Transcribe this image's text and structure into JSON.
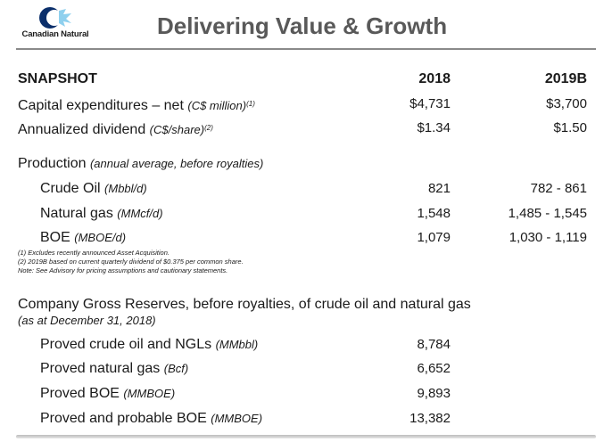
{
  "brand": {
    "logo_text": "Canadian Natural",
    "mark_color_dark": "#0b2f6b",
    "mark_color_light": "#8fd0ee"
  },
  "header": {
    "title": "Delivering Value & Growth"
  },
  "snapshot": {
    "heading": "SNAPSHOT",
    "col_2018": "2018",
    "col_2019": "2019B",
    "capex": {
      "label": "Capital expenditures – net",
      "unit": "(C$ million)",
      "note": "(1)",
      "v2018": "$4,731",
      "v2019": "$3,700"
    },
    "dividend": {
      "label": "Annualized dividend",
      "unit": "(C$/share)",
      "note": "(2)",
      "v2018": "$1.34",
      "v2019": "$1.50"
    }
  },
  "production": {
    "label": "Production",
    "unit": "(annual average, before royalties)",
    "rows": [
      {
        "label": "Crude Oil",
        "unit": "(Mbbl/d)",
        "v2018": "821",
        "v2019": "782 - 861"
      },
      {
        "label": "Natural gas",
        "unit": "(MMcf/d)",
        "v2018": "1,548",
        "v2019": "1,485 - 1,545"
      },
      {
        "label": "BOE",
        "unit": "(MBOE/d)",
        "v2018": "1,079",
        "v2019": "1,030 - 1,119"
      }
    ]
  },
  "notes": [
    "(1) Excludes recently announced Asset Acquisition.",
    "(2) 2019B based on current quarterly dividend of $0.375 per common share.",
    "Note: See Advisory for pricing assumptions and cautionary statements."
  ],
  "reserves": {
    "heading": "Company Gross Reserves, before royalties, of crude oil and natural gas",
    "subheading": "(as at December 31, 2018)",
    "rows": [
      {
        "label": "Proved crude oil and NGLs",
        "unit": "(MMbbl)",
        "value": "8,784"
      },
      {
        "label": "Proved natural gas",
        "unit": "(Bcf)",
        "value": "6,652"
      },
      {
        "label": "Proved BOE",
        "unit": "(MMBOE)",
        "value": "9,893"
      },
      {
        "label": "Proved and probable BOE",
        "unit": "(MMBOE)",
        "value": "13,382"
      }
    ]
  }
}
